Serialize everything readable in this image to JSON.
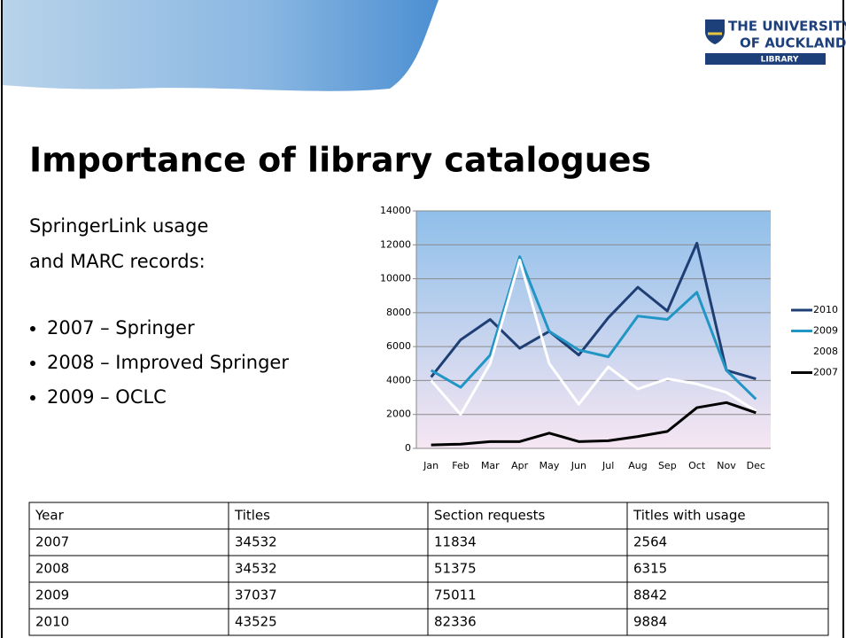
{
  "logo": {
    "line1": "THE UNIVERSITY",
    "line2": "OF AUCKLAND",
    "line3": "LIBRARY"
  },
  "title": "Importance of library catalogues",
  "intro": [
    "SpringerLink usage",
    "and MARC records:"
  ],
  "bullets": [
    "2007 – Springer",
    "2008 – Improved Springer",
    "2009 – OCLC"
  ],
  "chart_data": {
    "type": "line",
    "categories": [
      "Jan",
      "Feb",
      "Mar",
      "Apr",
      "May",
      "Jun",
      "Jul",
      "Aug",
      "Sep",
      "Oct",
      "Nov",
      "Dec"
    ],
    "series": [
      {
        "name": "2010",
        "color": "#1f3f74",
        "values": [
          4200,
          6400,
          7600,
          5900,
          6900,
          5500,
          7700,
          9500,
          8100,
          12100,
          4600,
          4100
        ]
      },
      {
        "name": "2009",
        "color": "#2196c4",
        "values": [
          4600,
          3600,
          5500,
          11300,
          6900,
          5800,
          5400,
          7800,
          7600,
          9200,
          4600,
          2900
        ]
      },
      {
        "name": "2008",
        "color": "#ffffff",
        "values": [
          4000,
          2000,
          5000,
          11100,
          5000,
          2600,
          4800,
          3500,
          4100,
          3800,
          3300,
          2200
        ]
      },
      {
        "name": "2007",
        "color": "#000000",
        "values": [
          200,
          250,
          400,
          400,
          900,
          400,
          450,
          700,
          1000,
          2400,
          2700,
          2100
        ]
      }
    ],
    "ylim": [
      0,
      14000
    ],
    "yticks": [
      0,
      2000,
      4000,
      6000,
      8000,
      10000,
      12000,
      14000
    ],
    "grid": true,
    "legend": "right"
  },
  "table": {
    "header": [
      "Year",
      "Titles",
      "Section requests",
      "Titles with usage"
    ],
    "rows": [
      [
        "2007",
        "34532",
        "11834",
        "2564"
      ],
      [
        "2008",
        "34532",
        "51375",
        "6315"
      ],
      [
        "2009",
        "37037",
        "75011",
        "8842"
      ],
      [
        "2010",
        "43525",
        "82336",
        "9884"
      ]
    ]
  }
}
